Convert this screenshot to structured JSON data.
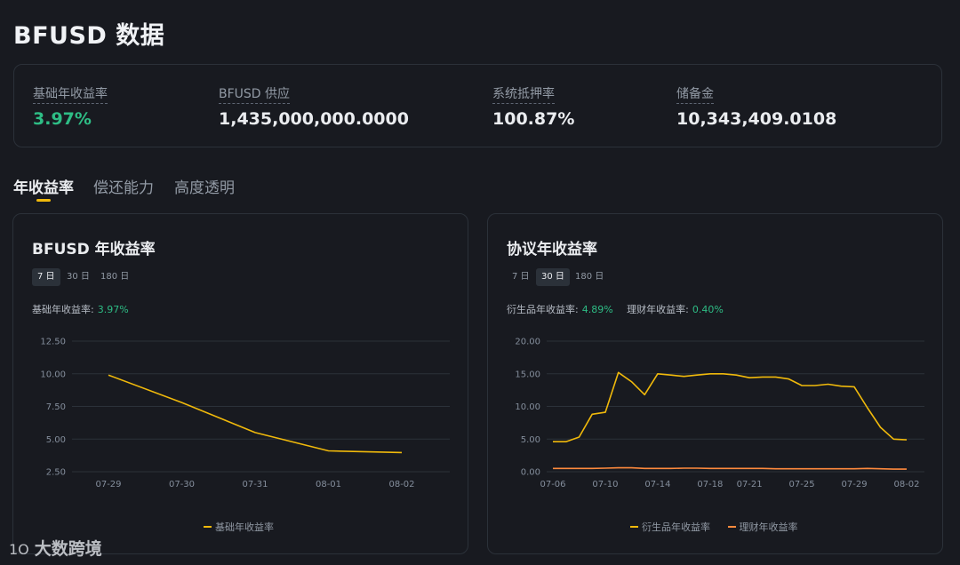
{
  "page": {
    "title": "BFUSD 数据"
  },
  "stats": [
    {
      "label": "基础年收益率",
      "value": "3.97%",
      "color": "#2ebd85"
    },
    {
      "label": "BFUSD 供应",
      "value": "1,435,000,000.0000"
    },
    {
      "label": "系统抵押率",
      "value": "100.87%"
    },
    {
      "label": "储备金",
      "value": "10,343,409.0108"
    }
  ],
  "tabs": [
    {
      "label": "年收益率",
      "active": true
    },
    {
      "label": "偿还能力"
    },
    {
      "label": "高度透明"
    }
  ],
  "cards": [
    {
      "title": "BFUSD 年收益率",
      "periods": [
        "7 日",
        "30 日",
        "180 日"
      ],
      "active_period": "7 日",
      "metrics": [
        {
          "label": "基础年收益率:",
          "value": "3.97%"
        }
      ],
      "legend": [
        "基础年收益率"
      ]
    },
    {
      "title": "协议年收益率",
      "periods": [
        "7 日",
        "30 日",
        "180 日"
      ],
      "active_period": "30 日",
      "metrics": [
        {
          "label": "衍生品年收益率:",
          "value": "4.89%"
        },
        {
          "label": "理财年收益率:",
          "value": "0.40%"
        }
      ],
      "legend": [
        "衍生品年收益率",
        "理财年收益率"
      ]
    }
  ],
  "chart_data": [
    {
      "type": "line",
      "title": "BFUSD 年收益率",
      "x": [
        "07-29",
        "07-30",
        "07-31",
        "08-01",
        "08-02"
      ],
      "x_ticks": [
        "07-29",
        "07-30",
        "07-31",
        "08-01",
        "08-02"
      ],
      "y_ticks": [
        2.5,
        5.0,
        7.5,
        10.0,
        12.5
      ],
      "ylim": [
        2.5,
        12.5
      ],
      "grid": true,
      "legend_position": "bottom",
      "series": [
        {
          "name": "基础年收益率",
          "color": "#f0b90b",
          "values": [
            9.9,
            7.8,
            5.5,
            4.1,
            3.97
          ]
        }
      ]
    },
    {
      "type": "line",
      "title": "协议年收益率",
      "x": [
        "07-06",
        "07-07",
        "07-08",
        "07-09",
        "07-10",
        "07-11",
        "07-12",
        "07-13",
        "07-14",
        "07-15",
        "07-16",
        "07-17",
        "07-18",
        "07-19",
        "07-20",
        "07-21",
        "07-22",
        "07-23",
        "07-24",
        "07-25",
        "07-26",
        "07-27",
        "07-28",
        "07-29",
        "07-30",
        "07-31",
        "08-01",
        "08-02"
      ],
      "x_ticks": [
        "07-06",
        "07-10",
        "07-14",
        "07-18",
        "07-21",
        "07-25",
        "07-29",
        "08-02"
      ],
      "y_ticks": [
        0.0,
        5.0,
        10.0,
        15.0,
        20.0
      ],
      "ylim": [
        0,
        20
      ],
      "grid": true,
      "legend_position": "bottom",
      "series": [
        {
          "name": "衍生品年收益率",
          "color": "#f0b90b",
          "values": [
            4.6,
            4.6,
            5.3,
            8.8,
            9.1,
            15.2,
            13.8,
            11.8,
            15.0,
            14.8,
            14.6,
            14.8,
            15.0,
            15.0,
            14.8,
            14.4,
            14.5,
            14.5,
            14.2,
            13.2,
            13.2,
            13.4,
            13.1,
            13.0,
            9.8,
            6.8,
            5.0,
            4.89
          ]
        },
        {
          "name": "理财年收益率",
          "color": "#ff8a3d",
          "values": [
            0.5,
            0.5,
            0.5,
            0.5,
            0.55,
            0.6,
            0.6,
            0.5,
            0.5,
            0.5,
            0.55,
            0.55,
            0.5,
            0.5,
            0.5,
            0.5,
            0.5,
            0.45,
            0.45,
            0.45,
            0.45,
            0.45,
            0.45,
            0.45,
            0.5,
            0.45,
            0.4,
            0.4
          ]
        }
      ]
    }
  ],
  "watermark": {
    "logo": "1O",
    "text": "大数跨境"
  }
}
